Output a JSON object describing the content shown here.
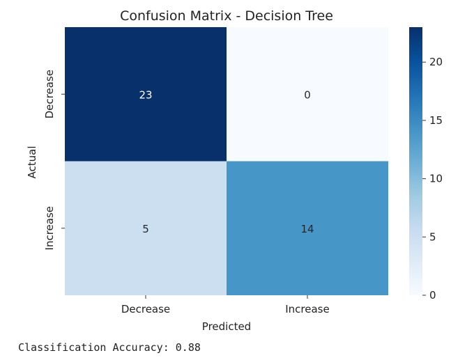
{
  "chart_data": {
    "type": "heatmap",
    "title": "Confusion Matrix - Decision Tree",
    "xlabel": "Predicted",
    "ylabel": "Actual",
    "x_categories": [
      "Decrease",
      "Increase"
    ],
    "y_categories": [
      "Decrease",
      "Increase"
    ],
    "values": [
      [
        23,
        0
      ],
      [
        5,
        14
      ]
    ],
    "colormap": "Blues",
    "colorbar": {
      "min": 0,
      "max": 23,
      "ticks": [
        0,
        5,
        10,
        15,
        20
      ]
    },
    "grid": false
  },
  "output": {
    "accuracy_text": "Classification Accuracy: 0.88"
  }
}
